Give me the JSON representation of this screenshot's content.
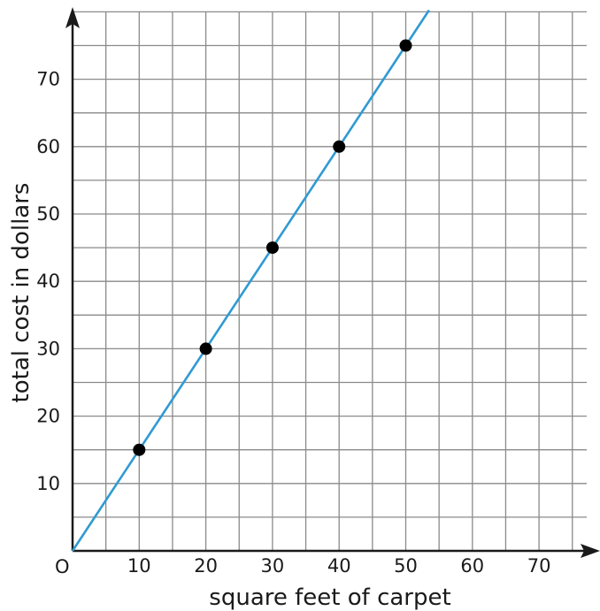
{
  "chart_data": {
    "type": "line",
    "title": "",
    "xlabel": "square feet of carpet",
    "ylabel": "total cost in dollars",
    "origin_label": "O",
    "xlim": [
      0,
      77.5
    ],
    "ylim": [
      0,
      80
    ],
    "grid": true,
    "grid_step": 5,
    "x_ticks": [
      10,
      20,
      30,
      40,
      50,
      60,
      70
    ],
    "y_ticks": [
      10,
      20,
      30,
      40,
      50,
      60,
      70
    ],
    "series": [
      {
        "type": "line",
        "color": "#2f9ad3",
        "x": [
          0,
          53.5
        ],
        "y": [
          0,
          80.25
        ]
      },
      {
        "type": "scatter",
        "color": "#000000",
        "x": [
          10,
          20,
          30,
          40,
          50
        ],
        "y": [
          15,
          30,
          45,
          60,
          75
        ]
      }
    ]
  }
}
